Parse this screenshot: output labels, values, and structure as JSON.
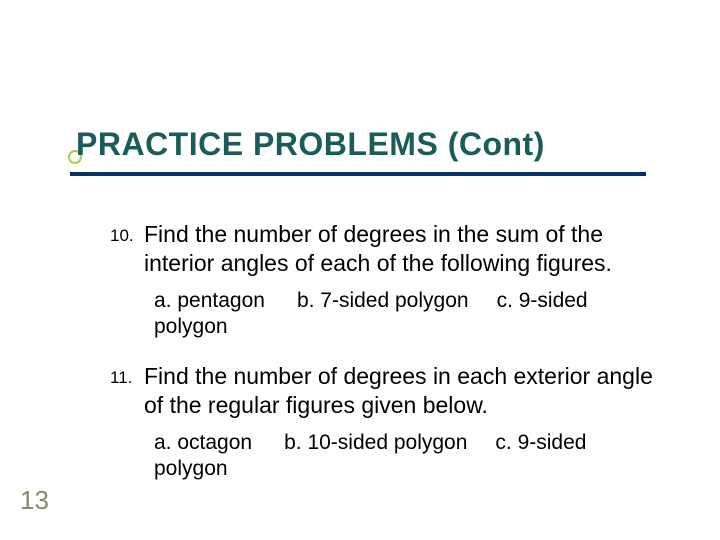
{
  "colors": {
    "title_text": "#1a5c5a",
    "underline": "#003366",
    "bullet_border": "#b2c94a",
    "body_text": "#000000",
    "pagenum": "#8a8a6a",
    "background": "#ffffff"
  },
  "typography": {
    "title_fontsize": 32,
    "title_weight": "bold",
    "item_number_fontsize": 17,
    "item_text_fontsize": 23,
    "sub_fontsize": 21,
    "pagenum_fontsize": 26,
    "font_family": "Arial"
  },
  "title": "PRACTICE PROBLEMS (Cont)",
  "items": [
    {
      "number": "10.",
      "text": "Find the number of degrees in the sum of the interior angles of each of the following figures.",
      "sub": {
        "a": "a. pentagon",
        "b": "b. 7-sided polygon",
        "c": "c. 9-sided",
        "tail": "polygon"
      }
    },
    {
      "number": "11.",
      "text": "Find the number of degrees in each exterior angle of the regular figures given below.",
      "sub": {
        "a": "a. octagon",
        "b": "b. 10-sided polygon",
        "c": "c. 9-sided",
        "tail": "polygon"
      }
    }
  ],
  "page_number": "13"
}
